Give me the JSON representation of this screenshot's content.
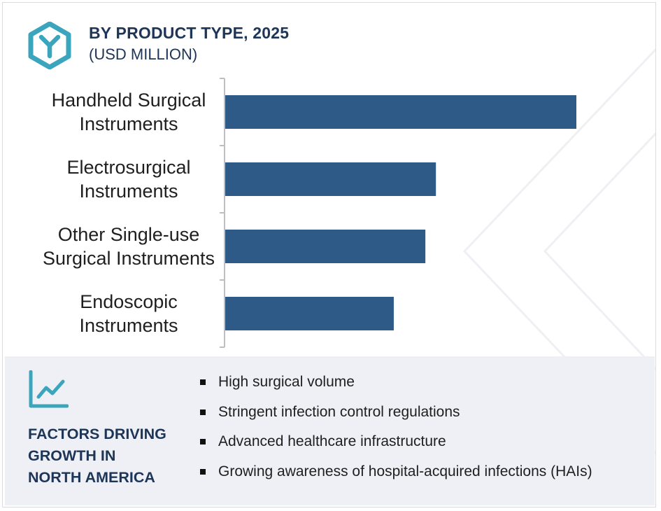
{
  "header": {
    "title": "BY PRODUCT TYPE, 2025",
    "subtitle": "(USD MILLION)",
    "logo_icon": "hexagon-y-logo-icon"
  },
  "colors": {
    "bar": "#2e5a88",
    "accent": "#3aa5bd",
    "title": "#1d3557",
    "footer_bg": "#eef0f6"
  },
  "chart_data": {
    "type": "bar",
    "orientation": "horizontal",
    "title": "BY PRODUCT TYPE, 2025",
    "subtitle": "(USD MILLION)",
    "categories": [
      [
        "Handheld Surgical",
        "Instruments"
      ],
      [
        "Electrosurgical",
        "Instruments"
      ],
      [
        "Other Single-use",
        "Surgical Instruments"
      ],
      [
        "Endoscopic",
        "Instruments"
      ]
    ],
    "values": [
      100,
      60,
      57,
      48
    ],
    "xlim": [
      0,
      100
    ],
    "value_axis_shown": false,
    "grid": false
  },
  "footer": {
    "icon": "trend-line-chart-icon",
    "title_lines": [
      "FACTORS DRIVING",
      "GROWTH IN",
      "NORTH AMERICA"
    ],
    "factors": [
      "High surgical volume",
      "Stringent infection control regulations",
      "Advanced healthcare infrastructure",
      "Growing awareness of hospital-acquired infections (HAIs)"
    ]
  }
}
